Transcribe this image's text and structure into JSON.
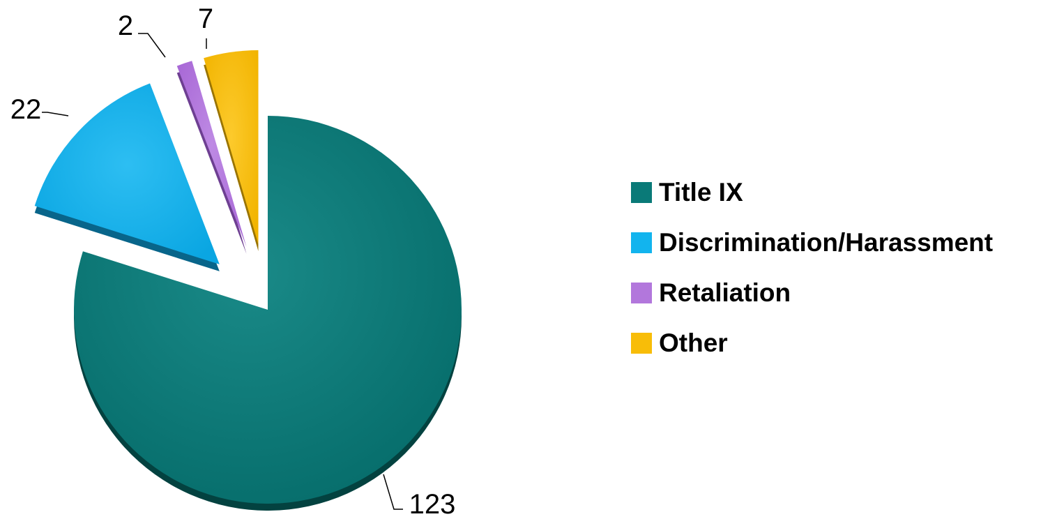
{
  "chart_data": {
    "type": "pie",
    "categories": [
      "Title IX",
      "Discrimination/Harassment",
      "Retaliation",
      "Other"
    ],
    "values": [
      123,
      22,
      2,
      7
    ],
    "labels": [
      "123",
      "22",
      "2",
      "7"
    ],
    "colors": [
      "#0a7a78",
      "#12b4ee",
      "#b277dc",
      "#f8bd08"
    ],
    "title": "",
    "legend_position": "right"
  }
}
